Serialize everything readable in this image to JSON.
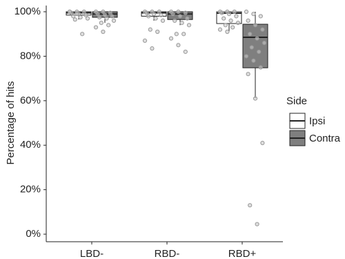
{
  "chart_data": {
    "type": "box",
    "y_label": "Percentage of hits",
    "legend_title": "Side",
    "categories": [
      "LBD-",
      "RBD-",
      "RBD+"
    ],
    "ylim": [
      -3.4,
      102.8
    ],
    "yticks": [
      {
        "value": 0,
        "label": "0%"
      },
      {
        "value": 20,
        "label": "20%"
      },
      {
        "value": 40,
        "label": "40%"
      },
      {
        "value": 60,
        "label": "60%"
      },
      {
        "value": 80,
        "label": "80%"
      },
      {
        "value": 100,
        "label": "100%"
      }
    ],
    "series": [
      {
        "name": "Ipsi",
        "color": "#ffffff",
        "boxes": [
          {
            "min": 96.5,
            "q1": 98.5,
            "median": 99.5,
            "q3": 100,
            "max": 100,
            "points": [
              100,
              100,
              100,
              99.5,
              99,
              98.5,
              98,
              97.5,
              97,
              96.5,
              90,
              100,
              99
            ]
          },
          {
            "min": 96,
            "q1": 98,
            "median": 99.5,
            "q3": 100,
            "max": 100,
            "points": [
              100,
              100,
              100,
              99.5,
              99,
              98.5,
              98,
              97,
              96,
              92,
              91,
              87,
              83.5
            ]
          },
          {
            "min": 91,
            "q1": 94.7,
            "median": 99.4,
            "q3": 100,
            "max": 100,
            "points": [
              100,
              100,
              100,
              99.5,
              99,
              98,
              97,
              96,
              95,
              94,
              93,
              92,
              91
            ]
          }
        ]
      },
      {
        "name": "Contra",
        "color": "#7f7f7f",
        "boxes": [
          {
            "min": 95,
            "q1": 97.5,
            "median": 99,
            "q3": 100,
            "max": 100,
            "points": [
              100,
              100,
              99.5,
              99,
              98.5,
              98,
              97.5,
              97,
              96,
              95,
              94,
              93,
              91
            ]
          },
          {
            "min": 94,
            "q1": 96.5,
            "median": 99,
            "q3": 100,
            "max": 100,
            "points": [
              100,
              100,
              99.5,
              99,
              98,
              97,
              96,
              95,
              94,
              90,
              90,
              88,
              85,
              82
            ]
          },
          {
            "min": 61.2,
            "q1": 74.8,
            "median": 88.5,
            "q3": 94.4,
            "max": 100,
            "points": [
              100,
              99,
              98,
              96,
              94,
              92,
              90,
              88,
              86,
              84,
              82,
              80,
              78,
              75,
              72,
              61,
              41,
              13,
              4.5
            ]
          }
        ]
      }
    ]
  }
}
